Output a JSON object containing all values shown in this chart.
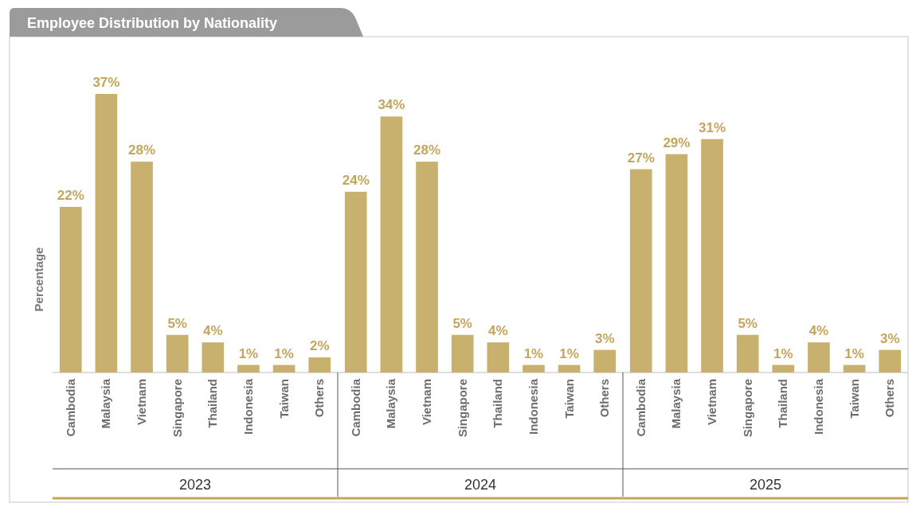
{
  "chart_data": [
    {
      "type": "bar",
      "title": "Employee Distribution by Nationality",
      "ylabel": "Percentage",
      "xlabel": "2023",
      "categories": [
        "Cambodia",
        "Malaysia",
        "Vietnam",
        "Singapore",
        "Thailand",
        "Indonesia",
        "Taiwan",
        "Others"
      ],
      "values": [
        22,
        37,
        28,
        5,
        4,
        1,
        1,
        2
      ],
      "value_labels": [
        "22%",
        "37%",
        "28%",
        "5%",
        "4%",
        "1%",
        "1%",
        "2%"
      ],
      "color": "#c8b16e"
    },
    {
      "type": "bar",
      "xlabel": "2024",
      "categories": [
        "Cambodia",
        "Malaysia",
        "Vietnam",
        "Singapore",
        "Thailand",
        "Indonesia",
        "Taiwan",
        "Others"
      ],
      "values": [
        24,
        34,
        28,
        5,
        4,
        1,
        1,
        3
      ],
      "value_labels": [
        "24%",
        "34%",
        "28%",
        "5%",
        "4%",
        "1%",
        "1%",
        "3%"
      ],
      "color": "#c8b16e"
    },
    {
      "type": "bar",
      "xlabel": "2025",
      "categories": [
        "Cambodia",
        "Malaysia",
        "Vietnam",
        "Singapore",
        "Thailand",
        "Indonesia",
        "Taiwan",
        "Others"
      ],
      "values": [
        27,
        29,
        31,
        5,
        1,
        4,
        1,
        3
      ],
      "value_labels": [
        "27%",
        "29%",
        "31%",
        "5%",
        "1%",
        "4%",
        "1%",
        "3%"
      ],
      "color": "#c8b16e"
    }
  ]
}
